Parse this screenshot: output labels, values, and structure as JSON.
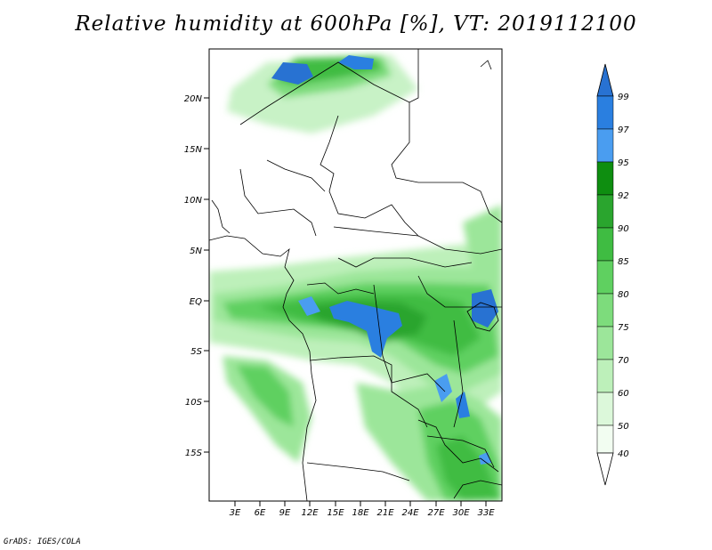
{
  "title": "Relative humidity at 600hPa [%], VT: 2019112100",
  "credit": "GrADS: IGES/COLA",
  "map": {
    "lat_labels": [
      "20N",
      "15N",
      "10N",
      "5N",
      "EQ",
      "5S",
      "10S",
      "15S"
    ],
    "lon_labels": [
      "3E",
      "6E",
      "9E",
      "12E",
      "15E",
      "18E",
      "21E",
      "24E",
      "27E",
      "30E",
      "33E"
    ]
  },
  "colorbar": {
    "labels": [
      "99",
      "97",
      "95",
      "92",
      "90",
      "85",
      "80",
      "75",
      "70",
      "60",
      "50",
      "40"
    ],
    "colors": [
      "#2872d2",
      "#2a7fe0",
      "#4a9df0",
      "#0e8e10",
      "#2aa52e",
      "#3fbc42",
      "#5fd060",
      "#7ddc7c",
      "#9ce69a",
      "#bdf0ba",
      "#dcf8da",
      "#f2fdf1"
    ]
  }
}
